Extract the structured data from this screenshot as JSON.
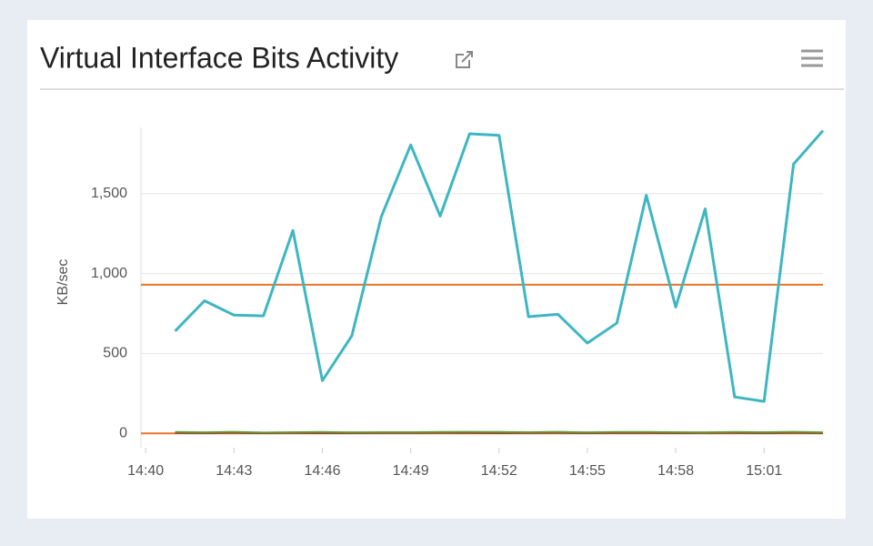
{
  "title": "Virtual Interface Bits Activity",
  "chart_data": {
    "type": "line",
    "y_label": "KB/sec",
    "x": [
      881,
      882,
      883,
      884,
      885,
      886,
      887,
      888,
      889,
      890,
      891,
      892,
      893,
      894,
      895,
      896,
      897,
      898,
      899,
      900,
      901,
      902,
      903
    ],
    "series": [
      {
        "color": "#3eb6c2",
        "values": [
          640,
          830,
          740,
          735,
          1270,
          330,
          610,
          1355,
          1805,
          1360,
          1875,
          1865,
          730,
          745,
          565,
          690,
          1490,
          790,
          1405,
          228,
          200,
          1685,
          1895
        ]
      },
      {
        "color": "#5a9a3a",
        "values": [
          8,
          6,
          9,
          5,
          7,
          8,
          6,
          7,
          7,
          8,
          9,
          8,
          7,
          9,
          6,
          8,
          8,
          7,
          6,
          8,
          7,
          9,
          6
        ]
      },
      {
        "color": "#a0322a",
        "values": [
          3,
          2,
          4,
          1,
          3,
          2,
          2,
          3,
          3,
          4,
          3,
          2,
          3,
          4,
          2,
          3,
          3,
          2,
          3,
          3,
          2,
          4,
          2
        ]
      }
    ],
    "thresholds": [
      {
        "value": 930,
        "color": "#e8732a"
      },
      {
        "value": 0,
        "color": "#e8732a"
      }
    ],
    "xlim": [
      879.84,
      903
    ],
    "xticks": [
      {
        "value": 880,
        "label": "14:40"
      },
      {
        "value": 883,
        "label": "14:43"
      },
      {
        "value": 886,
        "label": "14:46"
      },
      {
        "value": 889,
        "label": "14:49"
      },
      {
        "value": 892,
        "label": "14:52"
      },
      {
        "value": 895,
        "label": "14:55"
      },
      {
        "value": 898,
        "label": "14:58"
      },
      {
        "value": 901,
        "label": "15:01"
      }
    ],
    "ylim": [
      -90,
      1915
    ],
    "yticks": [
      0,
      500,
      {
        "value": 1000,
        "label": "1,000"
      },
      {
        "value": 1500,
        "label": "1,500"
      }
    ],
    "grid": true
  }
}
